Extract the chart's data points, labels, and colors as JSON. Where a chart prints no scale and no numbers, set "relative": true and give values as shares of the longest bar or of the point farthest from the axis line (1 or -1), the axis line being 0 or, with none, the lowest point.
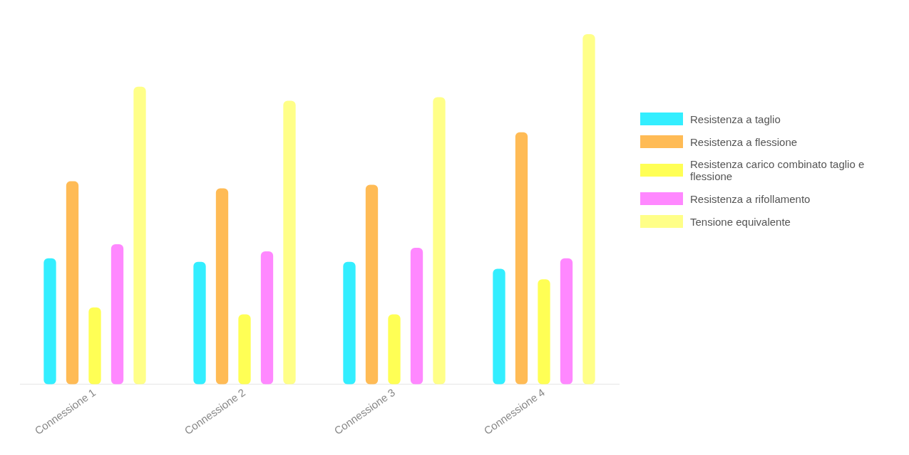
{
  "chart_data": {
    "type": "bar",
    "relative": true,
    "categories": [
      "Connessione 1",
      "Connessione 2",
      "Connessione 3",
      "Connessione 4"
    ],
    "series": [
      {
        "name": "Resistenza a taglio",
        "color": "#33eeff",
        "values": [
          0.36,
          0.35,
          0.35,
          0.33
        ]
      },
      {
        "name": "Resistenza a flessione",
        "color": "#ffbb55",
        "values": [
          0.58,
          0.56,
          0.57,
          0.72
        ]
      },
      {
        "name": "Resistenza carico combinato taglio e flessione",
        "color": "#ffff55",
        "values": [
          0.22,
          0.2,
          0.2,
          0.3
        ]
      },
      {
        "name": "Resistenza a rifollamento",
        "color": "#ff88ff",
        "values": [
          0.4,
          0.38,
          0.39,
          0.36
        ]
      },
      {
        "name": "Tensione equivalente",
        "color": "#ffff88",
        "values": [
          0.85,
          0.81,
          0.82,
          1
        ]
      }
    ],
    "legend": "right",
    "grid": false
  }
}
